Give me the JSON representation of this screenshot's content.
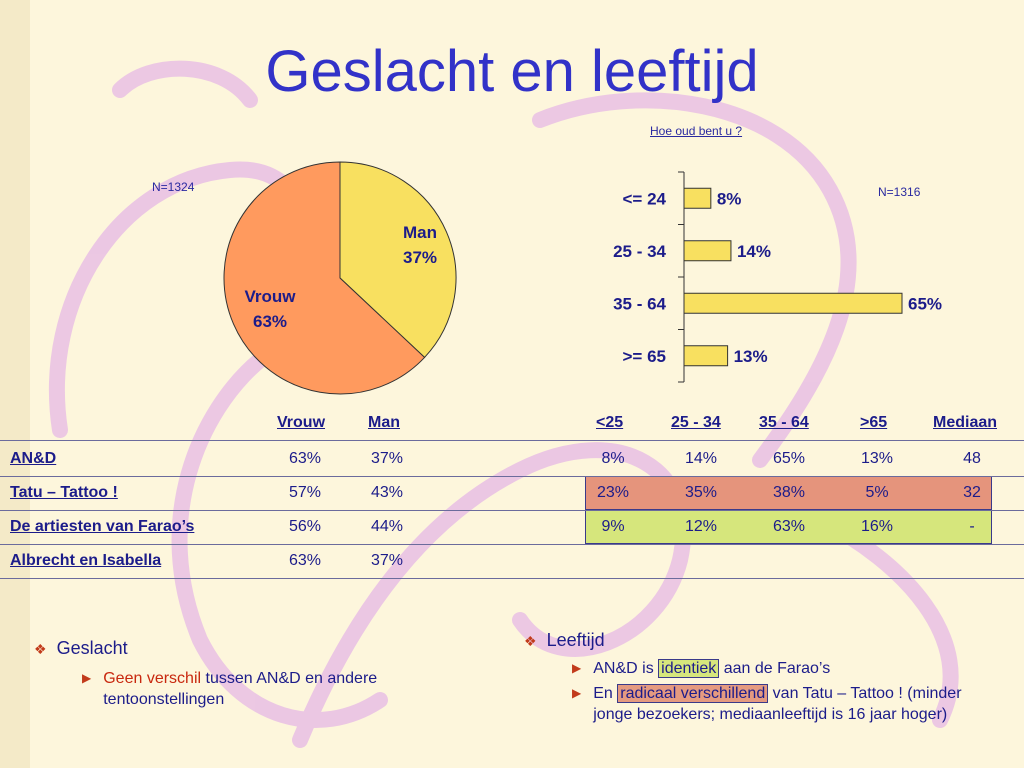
{
  "title": "Geslacht en leeftijd",
  "colors": {
    "vrouw": "#ff9a5e",
    "man": "#f8e060",
    "bar": "#f8e060",
    "tatu_row": "#e5947c",
    "farao_row": "#d6e67c"
  },
  "pie": {
    "n_label": "N=1324",
    "chart_data": {
      "type": "pie",
      "slices": [
        {
          "name": "Man",
          "label": "37%",
          "value": 37
        },
        {
          "name": "Vrouw",
          "label": "63%",
          "value": 63
        }
      ]
    }
  },
  "bars": {
    "title": "Hoe oud bent u ?",
    "n_label": "N=1316",
    "chart_data": {
      "type": "bar",
      "orientation": "horizontal",
      "categories": [
        "<= 24",
        "25 - 34",
        "35 - 64",
        ">= 65"
      ],
      "values": [
        8,
        14,
        65,
        13
      ],
      "value_labels": [
        "8%",
        "14%",
        "65%",
        "13%"
      ]
    }
  },
  "table": {
    "headers": {
      "vrouw": "Vrouw",
      "man": "Man",
      "lt25": "<25",
      "a2534": "25 - 34",
      "a3564": "35 - 64",
      "gt65": ">65",
      "mediaan": "Mediaan"
    },
    "rows": [
      {
        "name": "AN&D",
        "vrouw": "63%",
        "man": "37%",
        "lt25": "8%",
        "a2534": "14%",
        "a3564": "65%",
        "gt65": "13%",
        "mediaan": "48"
      },
      {
        "name": "Tatu – Tattoo !",
        "vrouw": "57%",
        "man": "43%",
        "lt25": "23%",
        "a2534": "35%",
        "a3564": "38%",
        "gt65": "5%",
        "mediaan": "32"
      },
      {
        "name": "De artiesten van Farao’s",
        "vrouw": "56%",
        "man": "44%",
        "lt25": "9%",
        "a2534": "12%",
        "a3564": "63%",
        "gt65": "16%",
        "mediaan": "-"
      },
      {
        "name": "Albrecht en Isabella",
        "vrouw": "63%",
        "man": "37%",
        "lt25": "",
        "a2534": "",
        "a3564": "",
        "gt65": "",
        "mediaan": ""
      }
    ]
  },
  "notes": {
    "left": {
      "heading": "Geslacht",
      "item_red": "Geen verschil",
      "item_rest": " tussen AN&D en andere tentoonstellingen"
    },
    "right": {
      "heading": "Leeftijd",
      "item1_pre": "AN&D is ",
      "item1_hl": "identiek",
      "item1_post": " aan de Farao’s",
      "item2_pre": "En ",
      "item2_hl": "radicaal verschillend",
      "item2_post": " van Tatu – Tattoo ! (minder jonge bezoekers; mediaanleeftijd is 16 jaar hoger)"
    }
  }
}
